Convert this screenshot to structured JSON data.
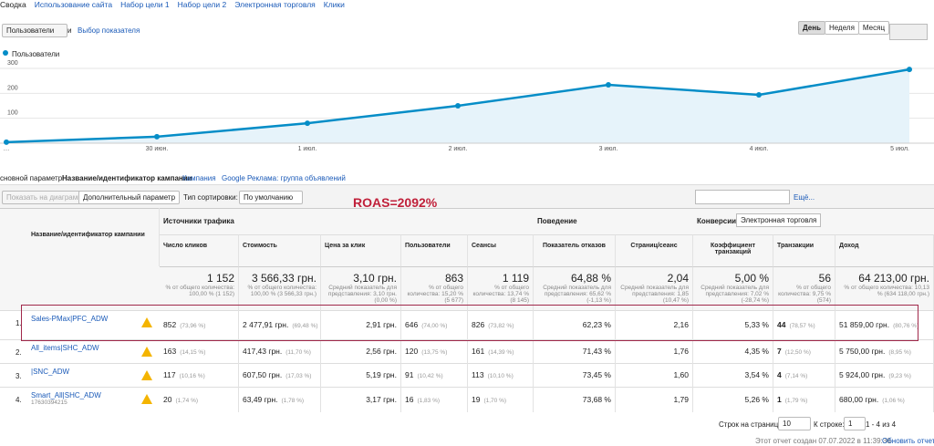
{
  "tabs": [
    "Сводка",
    "Использование сайта",
    "Набор цели 1",
    "Набор цели 2",
    "Электронная торговля",
    "Клики"
  ],
  "controls": {
    "metric": "Пользователи",
    "and": "и",
    "pick": "Выбор показателя",
    "periods": [
      "День",
      "Неделя",
      "Месяц"
    ]
  },
  "chart": {
    "type": "line",
    "legend": "Пользователи",
    "color": "#058dc7",
    "categories": [
      "…",
      "30 июн.",
      "1 июл.",
      "2 июл.",
      "3 июл.",
      "4 июл.",
      "5 июл."
    ],
    "values": [
      4,
      26,
      80,
      150,
      234,
      194,
      296
    ],
    "ylim": [
      0,
      300
    ],
    "yticks": [
      100,
      200,
      300
    ]
  },
  "dimension": {
    "label": "сновной параметр:",
    "active": "Название/идентификатор кампании",
    "links": [
      "Кампания",
      "Google Реклама: группа объявлений"
    ]
  },
  "toolbar": {
    "plot": "Показать на диаграмме",
    "secondary": "Дополнительный параметр",
    "sort_label": "Тип сортировки:",
    "sort": "По умолчанию",
    "more": "Ещё..."
  },
  "annotation": "ROAS=2092%",
  "table": {
    "groups": [
      "Источники трафика",
      "Поведение",
      "Конверсии",
      "Электронная торговля"
    ],
    "columns": [
      "Название/идентификатор кампании",
      "Число кликов",
      "Стоимость",
      "Цена за клик",
      "Пользователи",
      "Сеансы",
      "Показатель отказов",
      "Страниц/сеанс",
      "Коэффициент транзакций",
      "Транзакции",
      "Доход"
    ],
    "totals": [
      [
        "1 152",
        "% от общего количества: 100,00 % (1 152)"
      ],
      [
        "3 566,33 грн.",
        "% от общего количества: 100,00 % (3 566,33 грн.)"
      ],
      [
        "3,10 грн.",
        "Средний показатель для представления: 3,10 грн. (0,00 %)"
      ],
      [
        "863",
        "% от общего количества: 15,20 % (5 677)"
      ],
      [
        "1 119",
        "% от общего количества: 13,74 % (8 145)"
      ],
      [
        "64,88 %",
        "Средний показатель для представления: 65,62 % (-1,13 %)"
      ],
      [
        "2,04",
        "Средний показатель для представления: 1,85 (10,47 %)"
      ],
      [
        "5,00 %",
        "Средний показатель для представления: 7,02 % (-28,74 %)"
      ],
      [
        "56",
        "% от общего количества: 9,75 % (574)"
      ],
      [
        "64 213,00 грн.",
        "% от общего количества: 10,13 % (634 118,00 грн.)"
      ]
    ],
    "rows": [
      {
        "num": "1.",
        "name": "Sales-PMax|PFC_ADW",
        "cells": [
          [
            "852",
            "(73,96 %)"
          ],
          [
            "2 477,91 грн.",
            "(69,48 %)"
          ],
          [
            "2,91 грн."
          ],
          [
            "646",
            "(74,00 %)"
          ],
          [
            "826",
            "(73,82 %)"
          ],
          [
            "62,23 %"
          ],
          [
            "2,16"
          ],
          [
            "5,33 %"
          ],
          [
            "44",
            "(78,57 %)"
          ],
          [
            "51 859,00 грн.",
            "(80,76 %)"
          ]
        ]
      },
      {
        "num": "2.",
        "name": "All_items|SHC_ADW",
        "cells": [
          [
            "163",
            "(14,15 %)"
          ],
          [
            "417,43 грн.",
            "(11,70 %)"
          ],
          [
            "2,56 грн."
          ],
          [
            "120",
            "(13,75 %)"
          ],
          [
            "161",
            "(14,39 %)"
          ],
          [
            "71,43 %"
          ],
          [
            "1,76"
          ],
          [
            "4,35 %"
          ],
          [
            "7",
            "(12,50 %)"
          ],
          [
            "5 750,00 грн.",
            "(8,95 %)"
          ]
        ]
      },
      {
        "num": "3.",
        "name": "|SNC_ADW",
        "cells": [
          [
            "117",
            "(10,16 %)"
          ],
          [
            "607,50 грн.",
            "(17,03 %)"
          ],
          [
            "5,19 грн."
          ],
          [
            "91",
            "(10,42 %)"
          ],
          [
            "113",
            "(10,10 %)"
          ],
          [
            "73,45 %"
          ],
          [
            "1,60"
          ],
          [
            "3,54 %"
          ],
          [
            "4",
            "(7,14 %)"
          ],
          [
            "5 924,00 грн.",
            "(9,23 %)"
          ]
        ]
      },
      {
        "num": "4.",
        "name": "Smart_All|SHC_ADW",
        "id": "17630394215",
        "cells": [
          [
            "20",
            "(1,74 %)"
          ],
          [
            "63,49 грн.",
            "(1,78 %)"
          ],
          [
            "3,17 грн."
          ],
          [
            "16",
            "(1,83 %)"
          ],
          [
            "19",
            "(1,70 %)"
          ],
          [
            "73,68 %"
          ],
          [
            "1,79"
          ],
          [
            "5,26 %"
          ],
          [
            "1",
            "(1,79 %)"
          ],
          [
            "680,00 грн.",
            "(1,06 %)"
          ]
        ]
      }
    ]
  },
  "footer": {
    "rows_label": "Строк на странице:",
    "rows": "10",
    "goto_label": "К строке:",
    "goto": "1",
    "range": "1 - 4 из 4",
    "created": "Этот отчет создан 07.07.2022 в 11:39:36 ·",
    "refresh": "Обновить отчет"
  }
}
